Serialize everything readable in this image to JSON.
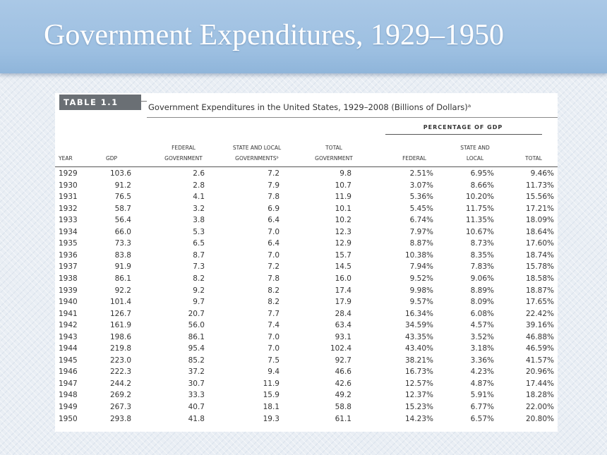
{
  "slide": {
    "title": "Government Expenditures, 1929–1950"
  },
  "table": {
    "tag": "TABLE 1.1",
    "caption": "Government Expenditures in the United States, 1929–2008 (Billions of Dollars)ᵃ",
    "group_header": "PERCENTAGE OF GDP",
    "columns": {
      "year": [
        "YEAR"
      ],
      "gdp": [
        "GDP"
      ],
      "federal": [
        "FEDERAL",
        "GOVERNMENT"
      ],
      "state_local": [
        "STATE AND LOCAL",
        "GOVERNMENTSᵇ"
      ],
      "total": [
        "TOTAL",
        "GOVERNMENT"
      ],
      "pct_federal": [
        "FEDERAL"
      ],
      "pct_state_local": [
        "STATE AND",
        "LOCAL"
      ],
      "pct_total": [
        "TOTAL"
      ]
    },
    "rows": [
      [
        "1929",
        "103.6",
        "2.6",
        "7.2",
        "9.8",
        "2.51%",
        "6.95%",
        "9.46%"
      ],
      [
        "1930",
        "91.2",
        "2.8",
        "7.9",
        "10.7",
        "3.07%",
        "8.66%",
        "11.73%"
      ],
      [
        "1931",
        "76.5",
        "4.1",
        "7.8",
        "11.9",
        "5.36%",
        "10.20%",
        "15.56%"
      ],
      [
        "1932",
        "58.7",
        "3.2",
        "6.9",
        "10.1",
        "5.45%",
        "11.75%",
        "17.21%"
      ],
      [
        "1933",
        "56.4",
        "3.8",
        "6.4",
        "10.2",
        "6.74%",
        "11.35%",
        "18.09%"
      ],
      [
        "1934",
        "66.0",
        "5.3",
        "7.0",
        "12.3",
        "7.97%",
        "10.67%",
        "18.64%"
      ],
      [
        "1935",
        "73.3",
        "6.5",
        "6.4",
        "12.9",
        "8.87%",
        "8.73%",
        "17.60%"
      ],
      [
        "1936",
        "83.8",
        "8.7",
        "7.0",
        "15.7",
        "10.38%",
        "8.35%",
        "18.74%"
      ],
      [
        "1937",
        "91.9",
        "7.3",
        "7.2",
        "14.5",
        "7.94%",
        "7.83%",
        "15.78%"
      ],
      [
        "1938",
        "86.1",
        "8.2",
        "7.8",
        "16.0",
        "9.52%",
        "9.06%",
        "18.58%"
      ],
      [
        "1939",
        "92.2",
        "9.2",
        "8.2",
        "17.4",
        "9.98%",
        "8.89%",
        "18.87%"
      ],
      [
        "1940",
        "101.4",
        "9.7",
        "8.2",
        "17.9",
        "9.57%",
        "8.09%",
        "17.65%"
      ],
      [
        "1941",
        "126.7",
        "20.7",
        "7.7",
        "28.4",
        "16.34%",
        "6.08%",
        "22.42%"
      ],
      [
        "1942",
        "161.9",
        "56.0",
        "7.4",
        "63.4",
        "34.59%",
        "4.57%",
        "39.16%"
      ],
      [
        "1943",
        "198.6",
        "86.1",
        "7.0",
        "93.1",
        "43.35%",
        "3.52%",
        "46.88%"
      ],
      [
        "1944",
        "219.8",
        "95.4",
        "7.0",
        "102.4",
        "43.40%",
        "3.18%",
        "46.59%"
      ],
      [
        "1945",
        "223.0",
        "85.2",
        "7.5",
        "92.7",
        "38.21%",
        "3.36%",
        "41.57%"
      ],
      [
        "1946",
        "222.3",
        "37.2",
        "9.4",
        "46.6",
        "16.73%",
        "4.23%",
        "20.96%"
      ],
      [
        "1947",
        "244.2",
        "30.7",
        "11.9",
        "42.6",
        "12.57%",
        "4.87%",
        "17.44%"
      ],
      [
        "1948",
        "269.2",
        "33.3",
        "15.9",
        "49.2",
        "12.37%",
        "5.91%",
        "18.28%"
      ],
      [
        "1949",
        "267.3",
        "40.7",
        "18.1",
        "58.8",
        "15.23%",
        "6.77%",
        "22.00%"
      ],
      [
        "1950",
        "293.8",
        "41.8",
        "19.3",
        "61.1",
        "14.23%",
        "6.57%",
        "20.80%"
      ]
    ]
  }
}
